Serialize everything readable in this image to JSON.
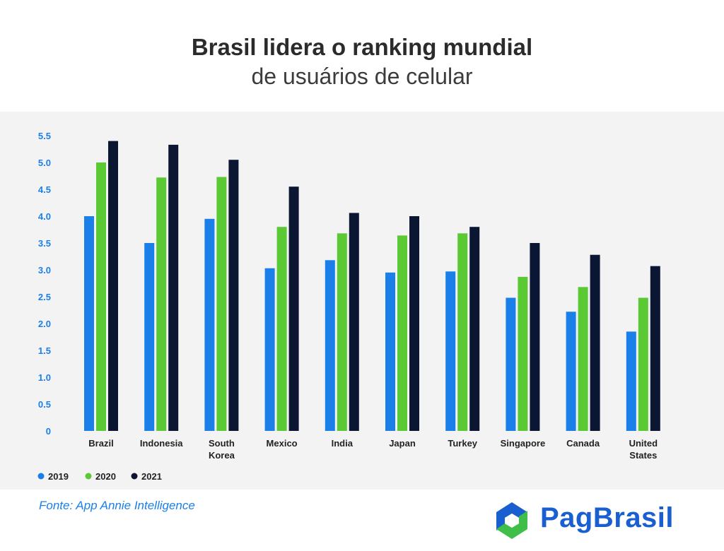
{
  "header": {
    "title": "Brasil lidera o ranking mundial",
    "subtitle": "de usuários de celular"
  },
  "source": "Fonte: App Annie Intelligence",
  "brand": {
    "name": "PagBrasil",
    "logo_icon": "pagbrasil-logo-icon"
  },
  "colors": {
    "s2019": "#1a7fe8",
    "s2020": "#5ac933",
    "s2021": "#0b1633",
    "axis": "#1a7fe8",
    "panel": "#f3f3f3"
  },
  "chart_data": {
    "type": "bar",
    "title": "",
    "xlabel": "",
    "ylabel": "",
    "ylim": [
      0,
      5.5
    ],
    "yticks": [
      "0",
      "0.5",
      "1.0",
      "1.5",
      "2.0",
      "2.5",
      "3.0",
      "3.5",
      "4.0",
      "4.5",
      "5.0",
      "5.5"
    ],
    "categories": [
      [
        "Brazil"
      ],
      [
        "Indonesia"
      ],
      [
        "South",
        "Korea"
      ],
      [
        "Mexico"
      ],
      [
        "India"
      ],
      [
        "Japan"
      ],
      [
        "Turkey"
      ],
      [
        "Singapore"
      ],
      [
        "Canada"
      ],
      [
        "United",
        "States"
      ]
    ],
    "series": [
      {
        "name": "2019",
        "values": [
          4.0,
          3.5,
          3.95,
          3.03,
          3.18,
          2.95,
          2.97,
          2.48,
          2.22,
          1.85
        ]
      },
      {
        "name": "2020",
        "values": [
          5.0,
          4.72,
          4.73,
          3.8,
          3.68,
          3.64,
          3.68,
          2.87,
          2.68,
          2.48
        ]
      },
      {
        "name": "2021",
        "values": [
          5.4,
          5.33,
          5.05,
          4.55,
          4.06,
          4.0,
          3.8,
          3.5,
          3.28,
          3.07
        ]
      }
    ],
    "legend_position": "bottom-left",
    "grid": false
  }
}
